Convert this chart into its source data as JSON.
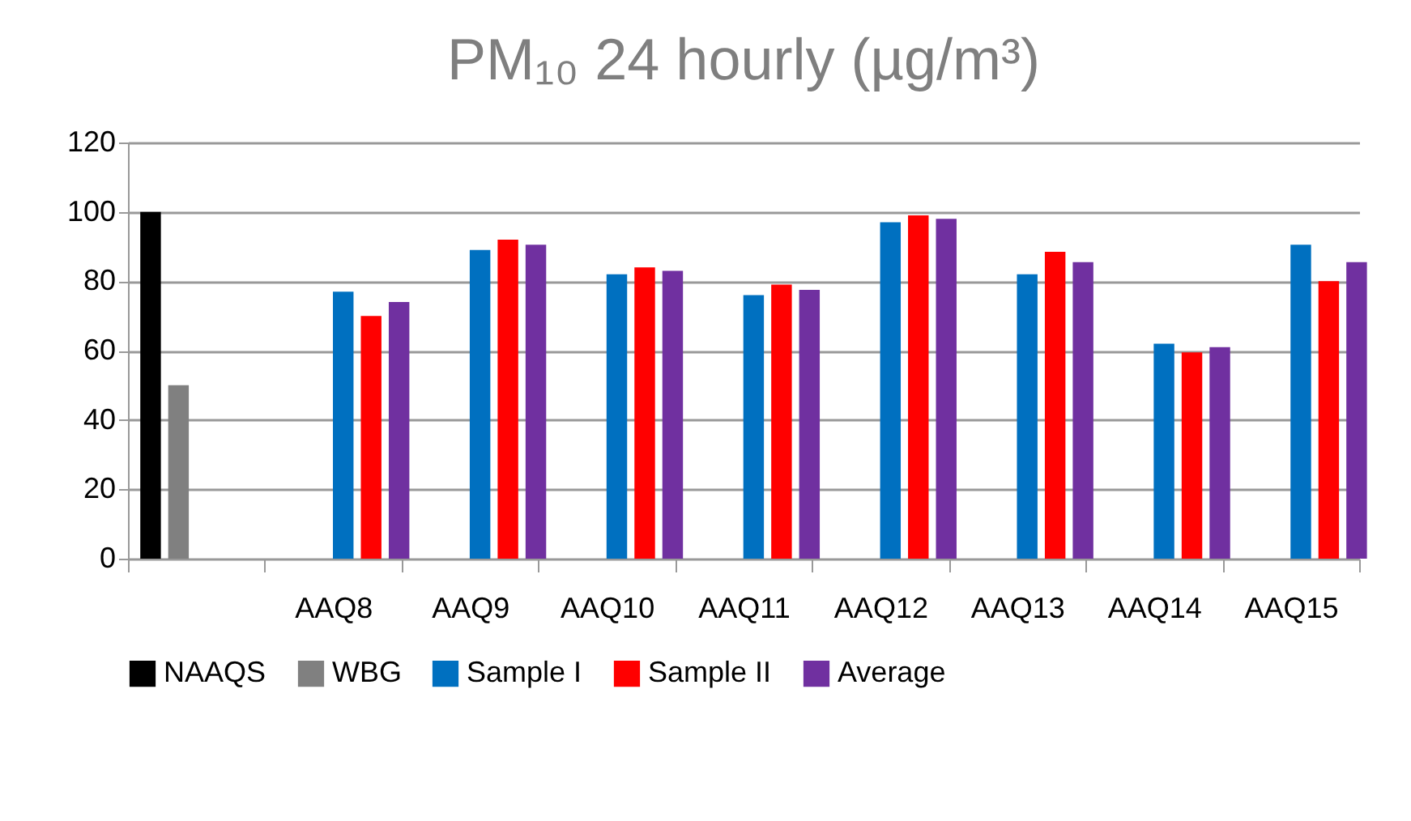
{
  "chart_data": {
    "type": "bar",
    "title": "PM₁₀ 24 hourly (µg/m³)",
    "categories": [
      null,
      "AAQ8",
      "AAQ9",
      "AAQ10",
      "AAQ11",
      "AAQ12",
      "AAQ13",
      "AAQ14",
      "AAQ15"
    ],
    "series": [
      {
        "name": "NAAQS",
        "color": "#000000",
        "values": [
          100,
          null,
          null,
          null,
          null,
          null,
          null,
          null,
          null
        ]
      },
      {
        "name": "WBG",
        "color": "#808080",
        "values": [
          50,
          null,
          null,
          null,
          null,
          null,
          null,
          null,
          null
        ]
      },
      {
        "name": "Sample I",
        "color": "#0070c0",
        "values": [
          null,
          77,
          89,
          82,
          76,
          97,
          82,
          62,
          90.5
        ]
      },
      {
        "name": "Sample II",
        "color": "#ff0000",
        "values": [
          null,
          70,
          92,
          84,
          79,
          99,
          88.5,
          59.5,
          80
        ]
      },
      {
        "name": "Average",
        "color": "#7030a0",
        "values": [
          null,
          74,
          90.5,
          83,
          77.5,
          98,
          85.5,
          61,
          85.5
        ]
      }
    ],
    "ylim": [
      0,
      120
    ],
    "yticks": [
      0,
      20,
      40,
      60,
      80,
      100,
      120
    ],
    "grid": "y",
    "legend": "bottom"
  }
}
